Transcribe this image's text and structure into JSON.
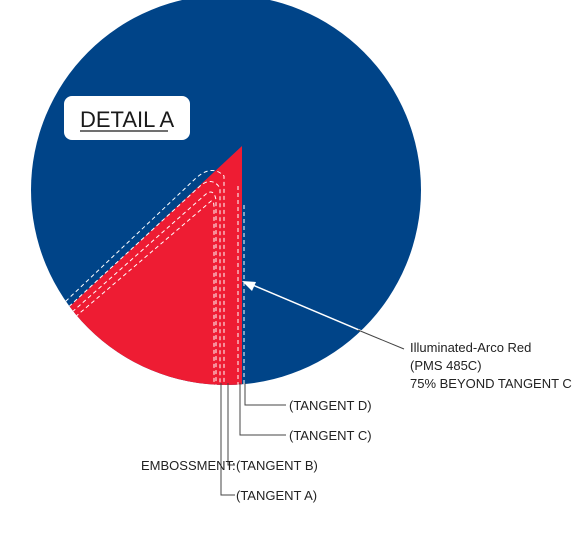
{
  "detail_title": "DETAIL A",
  "callout": {
    "line1": "Illuminated-Arco Red",
    "line2": "(PMS 485C)",
    "line3": "75% BEYOND  TANGENT C"
  },
  "embossment_label": "EMBOSSMENT:",
  "tangents": {
    "d": "(TANGENT D)",
    "c": "(TANGENT C)",
    "b": "(TANGENT B)",
    "a": "(TANGENT A)"
  },
  "colors": {
    "blue": "#004488",
    "red": "#EE1C33",
    "line": "#444444"
  }
}
